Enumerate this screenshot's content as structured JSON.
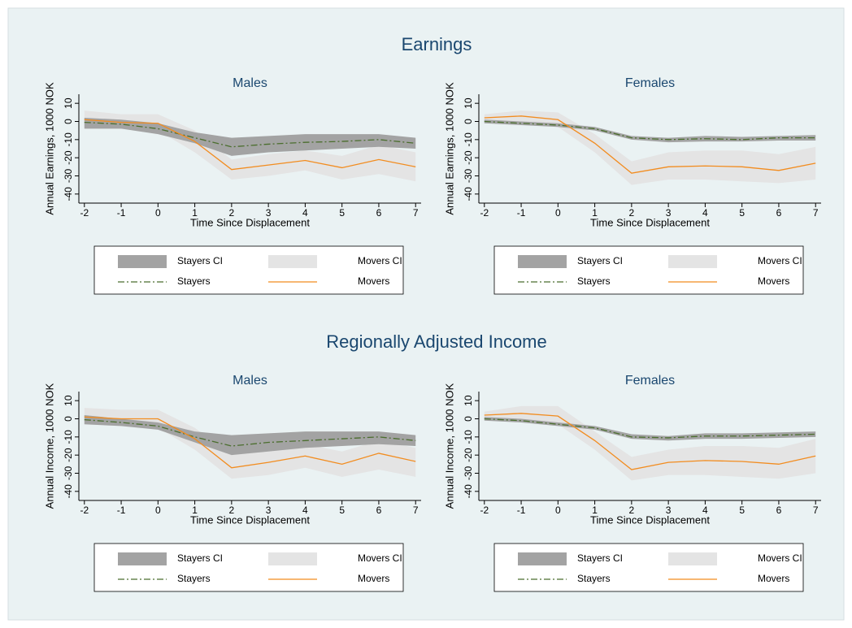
{
  "chart_data": [
    {
      "type": "line",
      "suptitle": "Earnings",
      "title": "Males",
      "xlabel": "Time Since Displacement",
      "ylabel": "Annual Earnings, 1000 NOK",
      "x": [
        -2,
        -1,
        0,
        1,
        2,
        3,
        4,
        5,
        6,
        7
      ],
      "xlim": [
        -2.15,
        7.15
      ],
      "xticks": [
        -2,
        -1,
        0,
        1,
        2,
        3,
        4,
        5,
        6,
        7
      ],
      "ylim": [
        -45,
        15
      ],
      "yticks": [
        -40,
        -30,
        -20,
        -10,
        0,
        10
      ],
      "series": [
        {
          "name": "Stayers CI",
          "color": "#a3a3a3",
          "lower": [
            -4,
            -4,
            -7,
            -12,
            -19,
            -17,
            -16,
            -15,
            -14,
            -15
          ],
          "upper": [
            2,
            1,
            -1,
            -6,
            -9,
            -8,
            -7,
            -7,
            -7,
            -9
          ]
        },
        {
          "name": "Movers CI",
          "color": "#e4e4e4",
          "lower": [
            -3,
            -4,
            -5,
            -17,
            -32,
            -30,
            -27,
            -32,
            -29,
            -33
          ],
          "upper": [
            6,
            4,
            4,
            -5,
            -21,
            -18,
            -16,
            -19,
            -13,
            -17
          ]
        },
        {
          "name": "Stayers",
          "color": "#4b6e2e",
          "linestyle": "dashdot",
          "values": [
            -0.5,
            -1.5,
            -4,
            -9,
            -14,
            -12.5,
            -11.5,
            -11,
            -10,
            -12
          ]
        },
        {
          "name": "Movers",
          "color": "#f28c1f",
          "linestyle": "solid",
          "values": [
            1,
            -0.5,
            -1,
            -11,
            -26.5,
            -24,
            -21.5,
            -25.5,
            -21,
            -25
          ]
        }
      ]
    },
    {
      "type": "line",
      "title": "Females",
      "xlabel": "Time Since Displacement",
      "ylabel": "Annual Earnings, 1000 NOK",
      "x": [
        -2,
        -1,
        0,
        1,
        2,
        3,
        4,
        5,
        6,
        7
      ],
      "xlim": [
        -2.15,
        7.15
      ],
      "xticks": [
        -2,
        -1,
        0,
        1,
        2,
        3,
        4,
        5,
        6,
        7
      ],
      "ylim": [
        -45,
        15
      ],
      "yticks": [
        -40,
        -30,
        -20,
        -10,
        0,
        10
      ],
      "series": [
        {
          "name": "Stayers CI",
          "color": "#a3a3a3",
          "lower": [
            -1,
            -2,
            -3,
            -5,
            -10,
            -11.5,
            -11,
            -11,
            -10.5,
            -10.5
          ],
          "upper": [
            1,
            0,
            -1,
            -3,
            -8,
            -9,
            -8,
            -8.5,
            -8,
            -7.5
          ]
        },
        {
          "name": "Movers CI",
          "color": "#e4e4e4",
          "lower": [
            0,
            -1,
            -3,
            -17,
            -35,
            -32,
            -32,
            -33,
            -34,
            -32
          ],
          "upper": [
            4,
            6,
            5,
            -7,
            -22,
            -17,
            -16,
            -16,
            -18,
            -14
          ]
        },
        {
          "name": "Stayers",
          "color": "#4b6e2e",
          "linestyle": "dashdot",
          "values": [
            0,
            -1,
            -2,
            -4,
            -9,
            -10,
            -9.5,
            -10,
            -9,
            -9
          ]
        },
        {
          "name": "Movers",
          "color": "#f28c1f",
          "linestyle": "solid",
          "values": [
            2,
            3,
            1,
            -12,
            -28.5,
            -25,
            -24.5,
            -25,
            -27,
            -23
          ]
        }
      ]
    },
    {
      "type": "line",
      "suptitle": "Regionally Adjusted Income",
      "title": "Males",
      "xlabel": "Time Since Displacement",
      "ylabel": "Annual Income, 1000 NOK",
      "x": [
        -2,
        -1,
        0,
        1,
        2,
        3,
        4,
        5,
        6,
        7
      ],
      "xlim": [
        -2.15,
        7.15
      ],
      "xticks": [
        -2,
        -1,
        0,
        1,
        2,
        3,
        4,
        5,
        6,
        7
      ],
      "ylim": [
        -45,
        15
      ],
      "yticks": [
        -40,
        -30,
        -20,
        -10,
        0,
        10
      ],
      "series": [
        {
          "name": "Stayers CI",
          "color": "#a3a3a3",
          "lower": [
            -3,
            -4,
            -6,
            -13,
            -20,
            -18,
            -16,
            -15,
            -14,
            -15
          ],
          "upper": [
            2,
            0,
            -2,
            -7,
            -9,
            -8,
            -7,
            -7,
            -7,
            -9
          ]
        },
        {
          "name": "Movers CI",
          "color": "#e4e4e4",
          "lower": [
            -3,
            -4,
            -5,
            -17,
            -33,
            -31,
            -27,
            -32,
            -28,
            -32
          ],
          "upper": [
            6,
            5,
            5,
            -5,
            -20,
            -17,
            -14,
            -18,
            -12,
            -16
          ]
        },
        {
          "name": "Stayers",
          "color": "#4b6e2e",
          "linestyle": "dashdot",
          "values": [
            -0.5,
            -2,
            -4,
            -10,
            -15,
            -13,
            -12,
            -11,
            -10,
            -12
          ]
        },
        {
          "name": "Movers",
          "color": "#f28c1f",
          "linestyle": "solid",
          "values": [
            1,
            0,
            0,
            -11,
            -27,
            -24,
            -20.5,
            -25,
            -19,
            -23.5
          ]
        }
      ]
    },
    {
      "type": "line",
      "title": "Females",
      "xlabel": "Time Since Displacement",
      "ylabel": "Annual Income, 1000 NOK",
      "x": [
        -2,
        -1,
        0,
        1,
        2,
        3,
        4,
        5,
        6,
        7
      ],
      "xlim": [
        -2.15,
        7.15
      ],
      "xticks": [
        -2,
        -1,
        0,
        1,
        2,
        3,
        4,
        5,
        6,
        7
      ],
      "ylim": [
        -45,
        15
      ],
      "yticks": [
        -40,
        -30,
        -20,
        -10,
        0,
        10
      ],
      "series": [
        {
          "name": "Stayers CI",
          "color": "#a3a3a3",
          "lower": [
            -1,
            -2,
            -4,
            -6,
            -11,
            -12,
            -11,
            -11,
            -10.5,
            -10
          ],
          "upper": [
            1,
            0,
            -2,
            -4,
            -8.5,
            -9.5,
            -8,
            -8,
            -7.5,
            -7
          ]
        },
        {
          "name": "Movers CI",
          "color": "#e4e4e4",
          "lower": [
            0,
            0,
            -3,
            -17,
            -34,
            -31,
            -31,
            -32,
            -33,
            -30
          ],
          "upper": [
            4,
            7,
            7,
            -7,
            -21,
            -17,
            -15,
            -15,
            -16,
            -11
          ]
        },
        {
          "name": "Stayers",
          "color": "#4b6e2e",
          "linestyle": "dashdot",
          "values": [
            0,
            -1,
            -3,
            -5,
            -10,
            -10.5,
            -9.5,
            -9.5,
            -9,
            -8.5
          ]
        },
        {
          "name": "Movers",
          "color": "#f28c1f",
          "linestyle": "solid",
          "values": [
            2,
            3,
            1.5,
            -12,
            -28,
            -24,
            -23,
            -23.5,
            -25,
            -20.5
          ]
        }
      ]
    }
  ]
}
